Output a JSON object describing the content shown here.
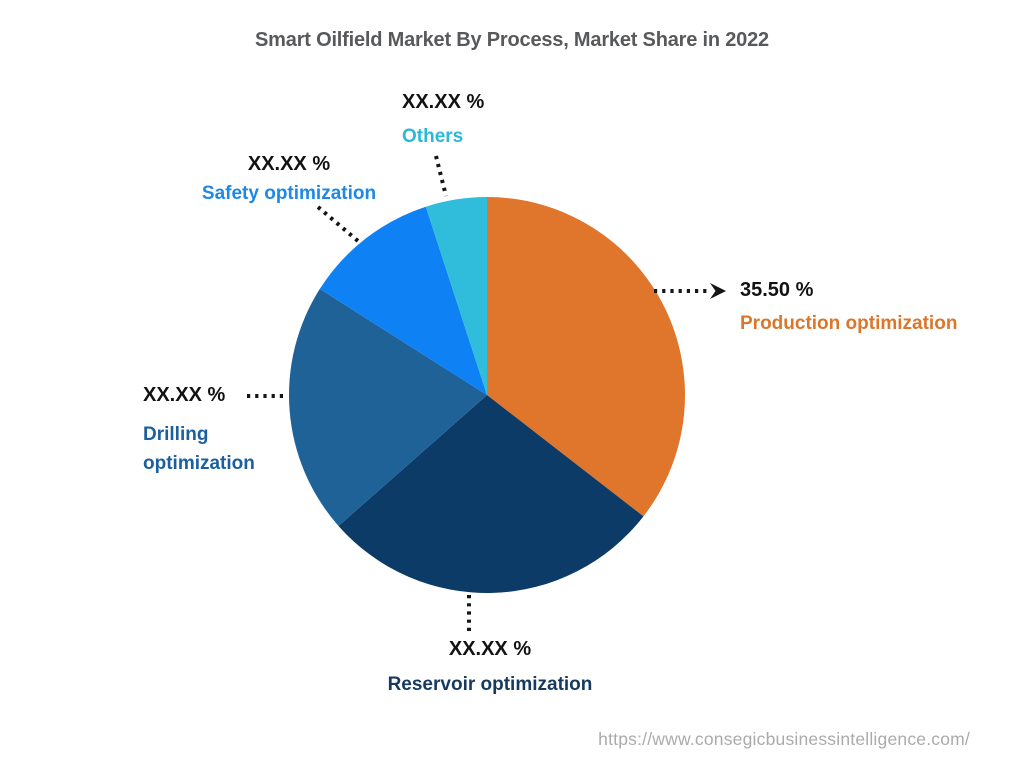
{
  "page": {
    "source_url": "https://www.consegicbusinessintelligence.com/"
  },
  "chart_data": {
    "type": "pie",
    "title": "Smart Oilfield Market By Process, Market Share in 2022",
    "direction": "clockwise",
    "start_angle_deg": 0,
    "legend_position": "none (direct slice callouts with dotted leader lines)",
    "value_text_color": "#121212",
    "slices": [
      {
        "label": "Production optimization",
        "display_value": "35.50 %",
        "share_pct_est": 35.5,
        "color": "#E0752C",
        "label_color": "#DB762B"
      },
      {
        "label": "Reservoir optimization",
        "display_value": "XX.XX %",
        "share_pct_est": 28.0,
        "color": "#0D3B68",
        "label_color": "#16395F"
      },
      {
        "label": "Drilling optimization",
        "display_value": "XX.XX %",
        "share_pct_est": 20.5,
        "color": "#1E6298",
        "label_color": "#1B5F9E"
      },
      {
        "label": "Safety optimization",
        "display_value": "XX.XX %",
        "share_pct_est": 11.0,
        "color": "#0E82F5",
        "label_color": "#1E88E5"
      },
      {
        "label": "Others",
        "display_value": "XX.XX %",
        "share_pct_est": 5.0,
        "color": "#30BDDC",
        "label_color": "#2BB9D8"
      }
    ]
  }
}
